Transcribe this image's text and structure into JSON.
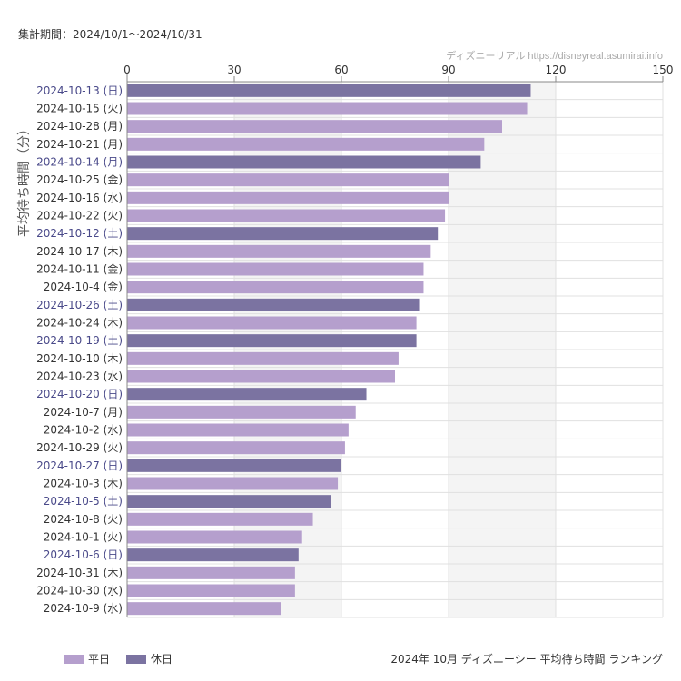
{
  "header": {
    "period": "集計期間：2024/10/1〜2024/10/31",
    "credit": "ディズニーリアル  https://disneyreal.asumirai.info"
  },
  "footer": {
    "title": "2024年 10月 ディズニーシー 平均待ち時間 ランキング"
  },
  "colors": {
    "weekday_bar": "#b59fcd",
    "holiday_bar": "#7b73a1",
    "weekday_label": "#333333",
    "holiday_label": "#4a4a8a",
    "shade": "#f4f4f4",
    "grid": "#e0e0e0"
  },
  "legend": {
    "weekday": "平日",
    "holiday": "休日"
  },
  "chart_data": {
    "type": "bar",
    "orientation": "horizontal",
    "xlim": [
      0,
      150
    ],
    "xticks": [
      "0",
      "30",
      "60",
      "90",
      "120",
      "150"
    ],
    "x_axis_position": "top",
    "ylabel": "平均待ち時間（分）",
    "grid": true,
    "legend_position": "bottom-left",
    "categories": [
      "2024-10-13 (日)",
      "2024-10-15 (火)",
      "2024-10-28 (月)",
      "2024-10-21 (月)",
      "2024-10-14 (月)",
      "2024-10-25 (金)",
      "2024-10-16 (水)",
      "2024-10-22 (火)",
      "2024-10-12 (土)",
      "2024-10-17 (木)",
      "2024-10-11 (金)",
      "2024-10-4 (金)",
      "2024-10-26 (土)",
      "2024-10-24 (木)",
      "2024-10-19 (土)",
      "2024-10-10 (木)",
      "2024-10-23 (水)",
      "2024-10-20 (日)",
      "2024-10-7 (月)",
      "2024-10-2 (水)",
      "2024-10-29 (火)",
      "2024-10-27 (日)",
      "2024-10-3 (木)",
      "2024-10-5 (土)",
      "2024-10-8 (火)",
      "2024-10-1 (火)",
      "2024-10-6 (日)",
      "2024-10-31 (木)",
      "2024-10-30 (水)",
      "2024-10-9 (水)"
    ],
    "values": [
      113,
      112,
      105,
      100,
      99,
      90,
      90,
      89,
      87,
      85,
      83,
      83,
      82,
      81,
      81,
      76,
      75,
      67,
      64,
      62,
      61,
      60,
      59,
      57,
      52,
      49,
      48,
      47,
      47,
      43
    ],
    "day_type": [
      "holiday",
      "weekday",
      "weekday",
      "weekday",
      "holiday",
      "weekday",
      "weekday",
      "weekday",
      "holiday",
      "weekday",
      "weekday",
      "weekday",
      "holiday",
      "weekday",
      "holiday",
      "weekday",
      "weekday",
      "holiday",
      "weekday",
      "weekday",
      "weekday",
      "holiday",
      "weekday",
      "holiday",
      "weekday",
      "weekday",
      "holiday",
      "weekday",
      "weekday",
      "weekday"
    ]
  }
}
